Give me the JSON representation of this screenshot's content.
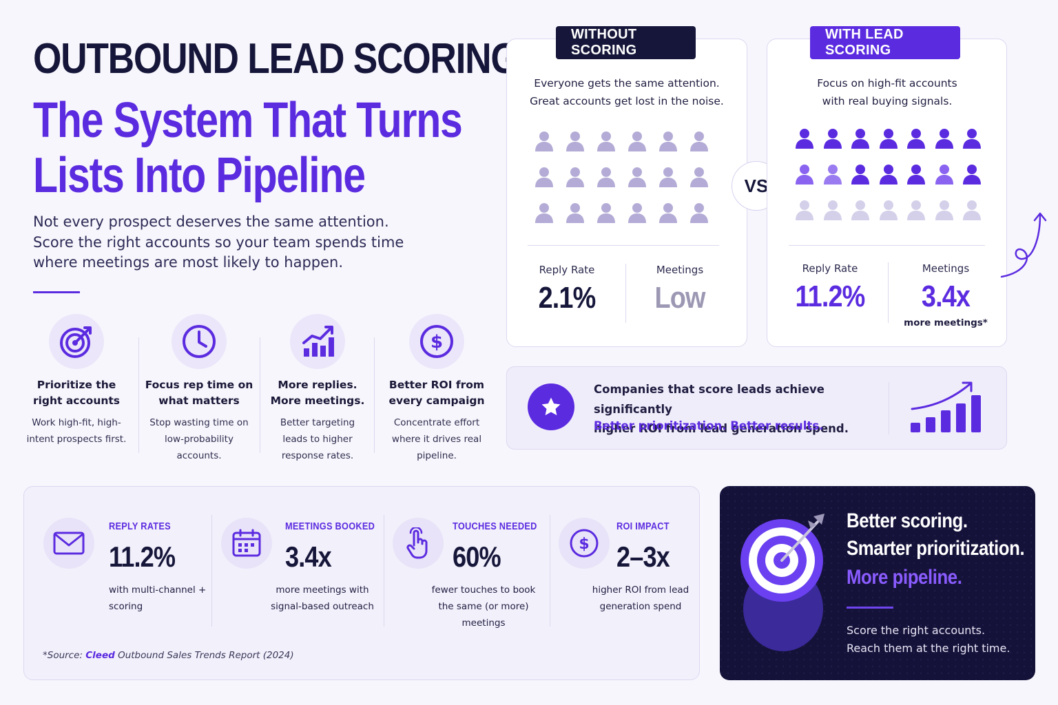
{
  "header": {
    "eyebrow": "OUTBOUND LEAD SCORING",
    "title_line1": "The System That Turns",
    "title_line2": "Lists Into Pipeline",
    "subtitle_line1": "Not every prospect deserves the same attention.",
    "subtitle_line2": "Score the right accounts so your team spends time",
    "subtitle_line3": "where meetings are most likely to happen."
  },
  "features": [
    {
      "icon": "target-icon",
      "title_1": "Prioritize the",
      "title_2": "right accounts",
      "desc_1": "Work high-fit, high-",
      "desc_2": "intent prospects first.",
      "desc_3": ""
    },
    {
      "icon": "clock-icon",
      "title_1": "Focus rep time on",
      "title_2": "what matters",
      "desc_1": "Stop wasting time on",
      "desc_2": "low-probability",
      "desc_3": "accounts."
    },
    {
      "icon": "growth-chart-icon",
      "title_1": "More replies.",
      "title_2": "More meetings.",
      "desc_1": "Better targeting",
      "desc_2": "leads to higher",
      "desc_3": "response rates."
    },
    {
      "icon": "dollar-icon",
      "title_1": "Better ROI from",
      "title_2": "every campaign",
      "desc_1": "Concentrate effort",
      "desc_2": "where it drives real",
      "desc_3": "pipeline."
    }
  ],
  "without": {
    "tag": "WITHOUT SCORING",
    "desc_1": "Everyone gets the same attention.",
    "desc_2": "Great accounts get lost in the noise.",
    "stat1_label": "Reply Rate",
    "stat1_value": "2.1%",
    "stat2_label": "Meetings",
    "stat2_value": "Low"
  },
  "vs_label": "VS",
  "with": {
    "tag": "WITH LEAD SCORING",
    "desc_1": "Focus on high-fit accounts",
    "desc_2": "with real buying signals.",
    "stat1_label": "Reply Rate",
    "stat1_value": "11.2%",
    "stat2_label": "Meetings",
    "stat2_value": "3.4x",
    "stat2_note": "more meetings*"
  },
  "banner": {
    "line1": "Companies that score leads achieve significantly",
    "line2": "higher ROI from lead generation spend.",
    "accent": "Better prioritization. Better results."
  },
  "metrics": [
    {
      "icon": "mail-icon",
      "label": "REPLY RATES",
      "value": "11.2%",
      "desc_1": "with multi-channel +",
      "desc_2": "scoring"
    },
    {
      "icon": "calendar-icon",
      "label": "MEETINGS BOOKED",
      "value": "3.4x",
      "desc_1": "more meetings with",
      "desc_2": "signal-based outreach"
    },
    {
      "icon": "pointer-hand-icon",
      "label": "TOUCHES NEEDED",
      "value": "60%",
      "desc_1": "fewer touches to book",
      "desc_2": "the same (or more) meetings"
    },
    {
      "icon": "dollar-icon",
      "label": "ROI IMPACT",
      "value": "2–3x",
      "desc_1": "higher ROI from lead",
      "desc_2": "generation spend"
    }
  ],
  "source": {
    "prefix": "*Source: ",
    "brand": "Cleed",
    "suffix": " Outbound Sales Trends Report (2024)"
  },
  "callout": {
    "line1": "Better scoring.",
    "line2": "Smarter prioritization.",
    "line3": "More pipeline.",
    "small_1": "Score the right accounts.",
    "small_2": "Reach them at the right time."
  },
  "colors": {
    "accent": "#5b2be0",
    "navy": "#16163a",
    "muted_person": "#b4acd6",
    "light_person": "#d5d0ea",
    "dark_panel": "#15123a"
  }
}
